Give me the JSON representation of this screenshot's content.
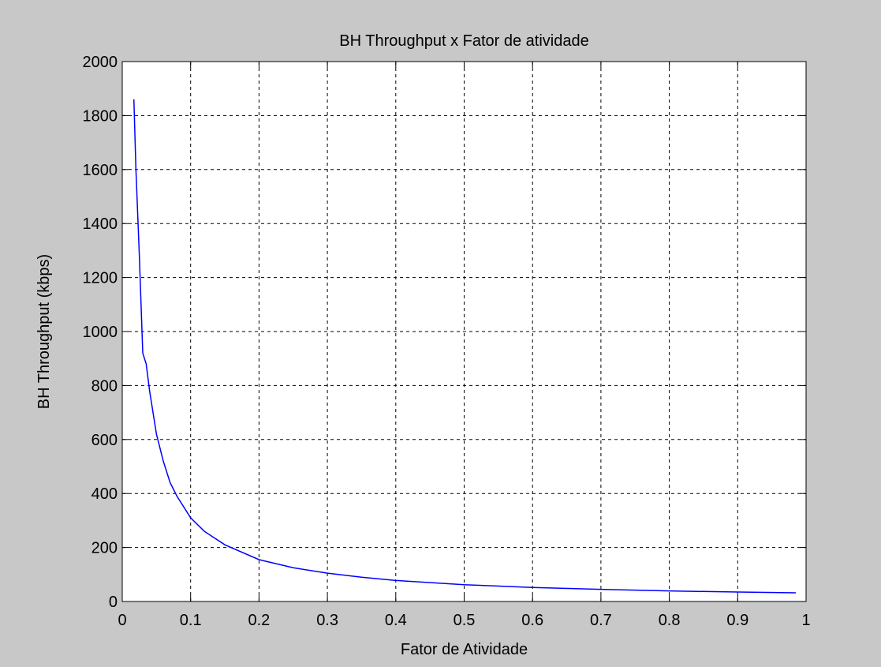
{
  "figure": {
    "background": "#c8c8c8",
    "axes_background": "#ffffff",
    "line_color": "#0000ff",
    "grid_color": "#000000"
  },
  "chart_data": {
    "type": "line",
    "title": "BH Throughput x Fator de atividade",
    "xlabel": "Fator de Atividade",
    "ylabel": "BH Throughput (kbps)",
    "xlim": [
      0,
      1
    ],
    "ylim": [
      0,
      2000
    ],
    "xticks": [
      0,
      0.1,
      0.2,
      0.3,
      0.4,
      0.5,
      0.6,
      0.7,
      0.8,
      0.9,
      1
    ],
    "xtick_labels": [
      "0",
      "0.1",
      "0.2",
      "0.3",
      "0.4",
      "0.5",
      "0.6",
      "0.7",
      "0.8",
      "0.9",
      "1"
    ],
    "yticks": [
      0,
      200,
      400,
      600,
      800,
      1000,
      1200,
      1400,
      1600,
      1800,
      2000
    ],
    "ytick_labels": [
      "0",
      "200",
      "400",
      "600",
      "800",
      "1000",
      "1200",
      "1400",
      "1600",
      "1800",
      "2000"
    ],
    "grid": true,
    "grid_style": "dashed",
    "series": [
      {
        "color": "#0000ff",
        "x": [
          0.017,
          0.02,
          0.025,
          0.03,
          0.035,
          0.04,
          0.05,
          0.06,
          0.07,
          0.08,
          0.1,
          0.12,
          0.15,
          0.2,
          0.25,
          0.3,
          0.35,
          0.4,
          0.5,
          0.6,
          0.7,
          0.8,
          0.9,
          0.985
        ],
        "y": [
          1860,
          1600,
          1280,
          920,
          880,
          780,
          620,
          520,
          440,
          390,
          310,
          260,
          210,
          155,
          125,
          105,
          90,
          78,
          62,
          52,
          45,
          39,
          35,
          32
        ]
      }
    ]
  }
}
